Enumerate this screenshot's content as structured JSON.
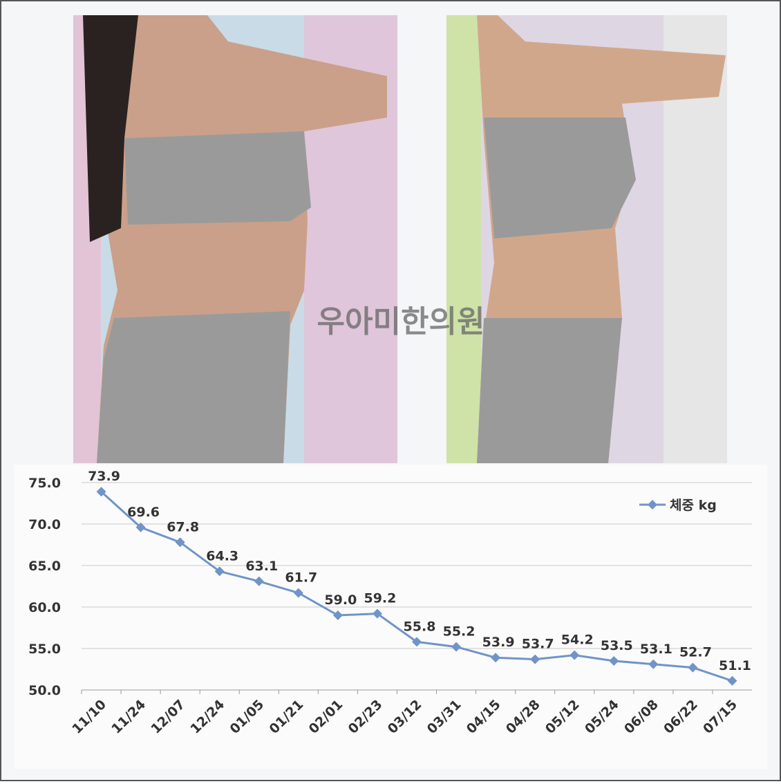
{
  "watermark": "우아미한의원",
  "chart_data": {
    "type": "line",
    "categories": [
      "11/10",
      "11/24",
      "12/07",
      "12/24",
      "01/05",
      "01/21",
      "02/01",
      "02/23",
      "03/12",
      "03/31",
      "04/15",
      "04/28",
      "05/12",
      "05/24",
      "06/08",
      "06/22",
      "07/15"
    ],
    "series": [
      {
        "name": "체중 kg",
        "color": "#7094c8",
        "values": [
          73.9,
          69.6,
          67.8,
          64.3,
          63.1,
          61.7,
          59.0,
          59.2,
          55.8,
          55.2,
          53.9,
          53.7,
          54.2,
          53.5,
          53.1,
          52.7,
          51.1
        ],
        "value_labels": [
          "73.9",
          "69.6",
          "67.8",
          "64.3",
          "63.1",
          "61.7",
          "59.0",
          "59.2",
          "55.8",
          "55.2",
          "53.9",
          "53.7",
          "54.2",
          "53.5",
          "53.1",
          "52.7",
          "51.1"
        ]
      }
    ],
    "ylim": [
      50,
      75
    ],
    "yticks": [
      {
        "value": 50,
        "label": "50.0"
      },
      {
        "value": 55,
        "label": "55.0"
      },
      {
        "value": 60,
        "label": "60.0"
      },
      {
        "value": 65,
        "label": "65.0"
      },
      {
        "value": 70,
        "label": "70.0"
      },
      {
        "value": 75,
        "label": "75.0"
      }
    ],
    "grid": true,
    "legend": "upper right"
  }
}
